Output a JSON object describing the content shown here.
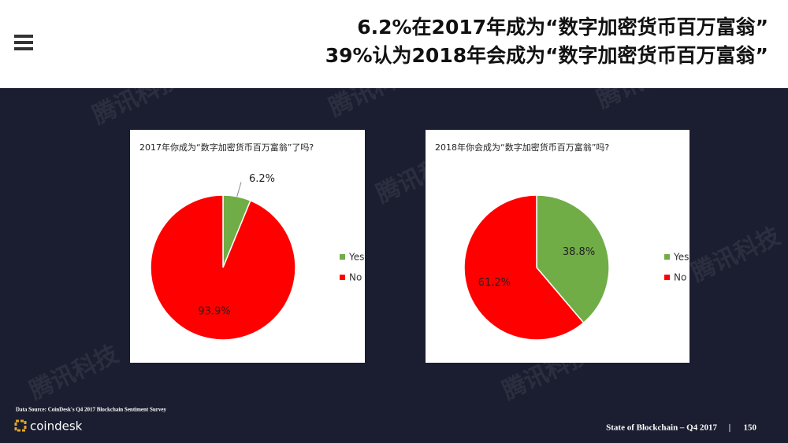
{
  "header": {
    "line1": "6.2%在2017年成为“数字加密货币百万富翁”",
    "line2": "39%认为2018年会成为“数字加密货币百万富翁”"
  },
  "watermark": "腾讯科技",
  "chart_data": [
    {
      "type": "pie",
      "title": "2017年你成为“数字加密货币百万富翁”了吗?",
      "categories": [
        "Yes",
        "No"
      ],
      "values": [
        6.2,
        93.9
      ],
      "value_labels": [
        "6.2%",
        "93.9%"
      ],
      "colors": [
        "#70ad47",
        "#ff0000"
      ],
      "legend": "right"
    },
    {
      "type": "pie",
      "title": "2018年你会成为“数字加密货币百万富翁”吗?",
      "categories": [
        "Yes",
        "No"
      ],
      "values": [
        38.8,
        61.2
      ],
      "value_labels": [
        "38.8%",
        "61.2%"
      ],
      "colors": [
        "#70ad47",
        "#ff0000"
      ],
      "legend": "right"
    }
  ],
  "footer": {
    "source": "Data Source: CoinDesk's Q4 2017 Blockchain Sentiment Survey",
    "logo": "coindesk",
    "report": "State of Blockchain – Q4 2017",
    "separator": "|",
    "page": "150"
  }
}
